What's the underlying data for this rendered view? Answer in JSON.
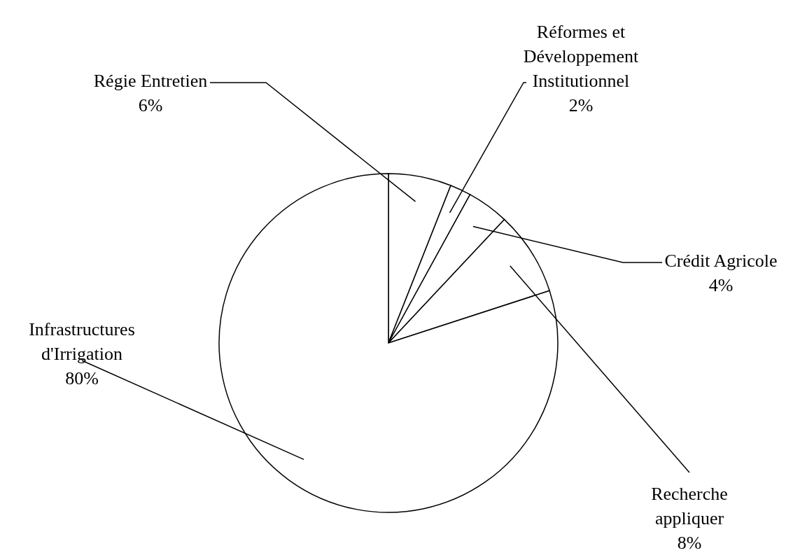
{
  "chart_data": {
    "type": "pie",
    "categories": [
      "Régie Entretien",
      "Réformes et Développement Institutionnel",
      "Crédit Agricole",
      "Recherche appliquer",
      "Infrastructures d'Irrigation"
    ],
    "values": [
      6,
      2,
      4,
      8,
      80
    ],
    "value_labels": [
      "6%",
      "2%",
      "4%",
      "8%",
      "80%"
    ],
    "colors": [
      "#ffffff",
      "#ffffff",
      "#ffffff",
      "#ffffff",
      "#ffffff"
    ]
  }
}
